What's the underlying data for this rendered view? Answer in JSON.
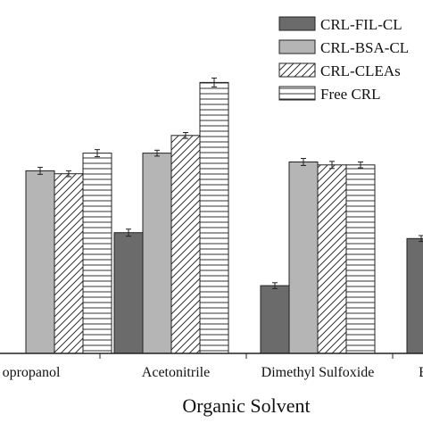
{
  "chart_data": {
    "type": "bar",
    "xlabel": "Organic Solvent",
    "ylabel": "",
    "title": "",
    "categories": [
      "opropanol",
      "Acetonitrile",
      "Dimethyl Sulfoxide",
      "E"
    ],
    "series": [
      {
        "name": "CRL-FIL-CL",
        "values": [
          null,
          41,
          23,
          39
        ],
        "errors": [
          null,
          1.2,
          1.0,
          1.0
        ]
      },
      {
        "name": "CRL-BSA-CL",
        "values": [
          62,
          68,
          65,
          null
        ],
        "errors": [
          1.2,
          1.0,
          1.2,
          null
        ]
      },
      {
        "name": "CRL-CLEAs",
        "values": [
          61,
          74,
          64,
          null
        ],
        "errors": [
          1.0,
          1.0,
          1.2,
          null
        ]
      },
      {
        "name": "Free CRL",
        "values": [
          68,
          92,
          64,
          null
        ],
        "errors": [
          1.2,
          1.5,
          1.0,
          null
        ]
      }
    ],
    "ylim": [
      0,
      100
    ],
    "colors": [
      "#6b6b6b",
      "#b5b5b5",
      "#ffffff",
      "#ffffff"
    ],
    "patterns": [
      "solid",
      "solid",
      "diagonal-hatch",
      "horizontal-hatch"
    ],
    "legend": "top-right",
    "grid": false
  }
}
